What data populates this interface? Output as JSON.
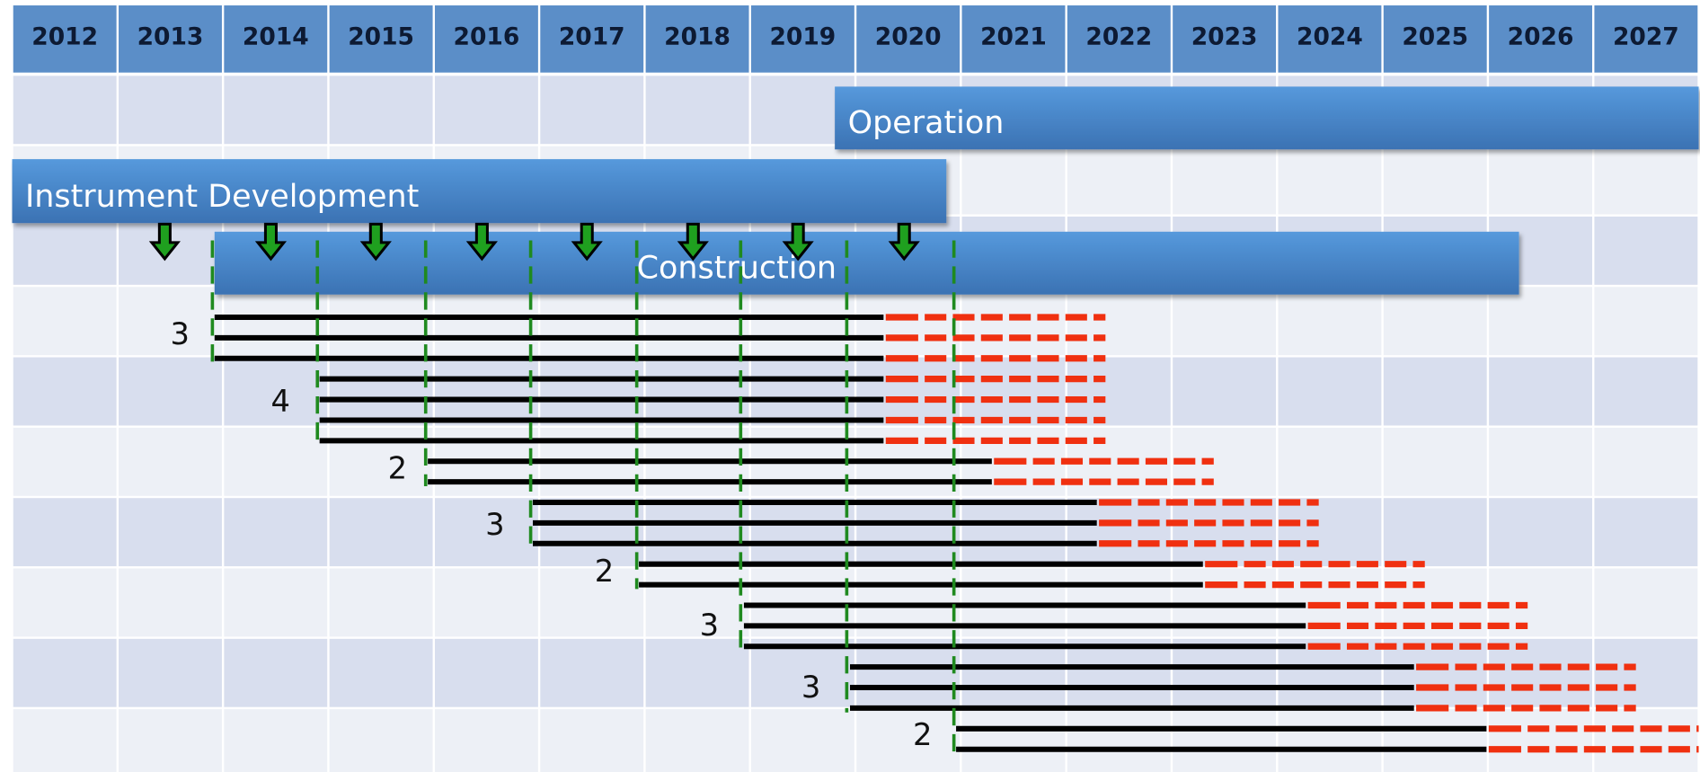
{
  "header": {
    "years": [
      2012,
      2013,
      2014,
      2015,
      2016,
      2017,
      2018,
      2019,
      2020,
      2021,
      2022,
      2023,
      2024,
      2025,
      2026,
      2027
    ]
  },
  "phases": [
    {
      "label": "Operation"
    },
    {
      "label": "Instrument Development"
    },
    {
      "label": "Construction"
    }
  ],
  "groups": [
    {
      "label": 3
    },
    {
      "label": 4
    },
    {
      "label": 2
    },
    {
      "label": 3
    },
    {
      "label": 2
    },
    {
      "label": 3
    },
    {
      "label": 3
    },
    {
      "label": 2
    }
  ]
}
